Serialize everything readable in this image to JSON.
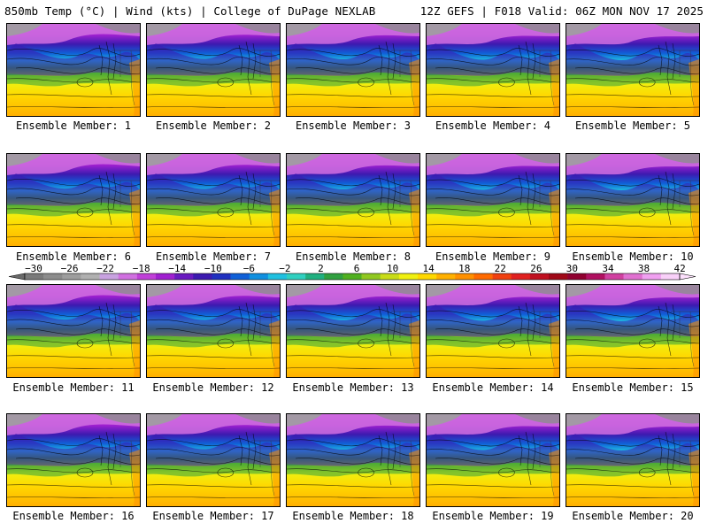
{
  "header": {
    "left": "850mb Temp (°C) | Wind (kts) | College of DuPage NEXLAB",
    "right": "12Z GEFS | F018 Valid: 06Z MON NOV 17 2025"
  },
  "members": [
    "Ensemble Member: 1",
    "Ensemble Member: 2",
    "Ensemble Member: 3",
    "Ensemble Member: 4",
    "Ensemble Member: 5",
    "Ensemble Member: 6",
    "Ensemble Member: 7",
    "Ensemble Member: 8",
    "Ensemble Member: 9",
    "Ensemble Member: 10",
    "Ensemble Member: 11",
    "Ensemble Member: 12",
    "Ensemble Member: 13",
    "Ensemble Member: 14",
    "Ensemble Member: 15",
    "Ensemble Member: 16",
    "Ensemble Member: 17",
    "Ensemble Member: 18",
    "Ensemble Member: 19",
    "Ensemble Member: 20"
  ],
  "colorbar": {
    "labels": [
      "-30",
      "-26",
      "-22",
      "-18",
      "-14",
      "-10",
      "-6",
      "-2",
      "2",
      "6",
      "10",
      "14",
      "18",
      "22",
      "26",
      "30",
      "34",
      "38",
      "42"
    ],
    "colors": [
      "#7a7a7a",
      "#8c8c8c",
      "#9e9e9e",
      "#b0b0b0",
      "#c8a2e0",
      "#d070e0",
      "#c040d8",
      "#a020d0",
      "#6a1ac0",
      "#3c1ab0",
      "#2030c0",
      "#1060d8",
      "#1090e0",
      "#20c0e0",
      "#30d0c0",
      "#20b080",
      "#30a040",
      "#50b020",
      "#90c820",
      "#c8dc18",
      "#f0f010",
      "#ffd800",
      "#ffb000",
      "#ff9000",
      "#ff6a00",
      "#f04010",
      "#e02020",
      "#c01020",
      "#a00818",
      "#900030",
      "#b01060",
      "#d040a0",
      "#e070d0",
      "#f0a0f0",
      "#f8d0f8"
    ]
  }
}
